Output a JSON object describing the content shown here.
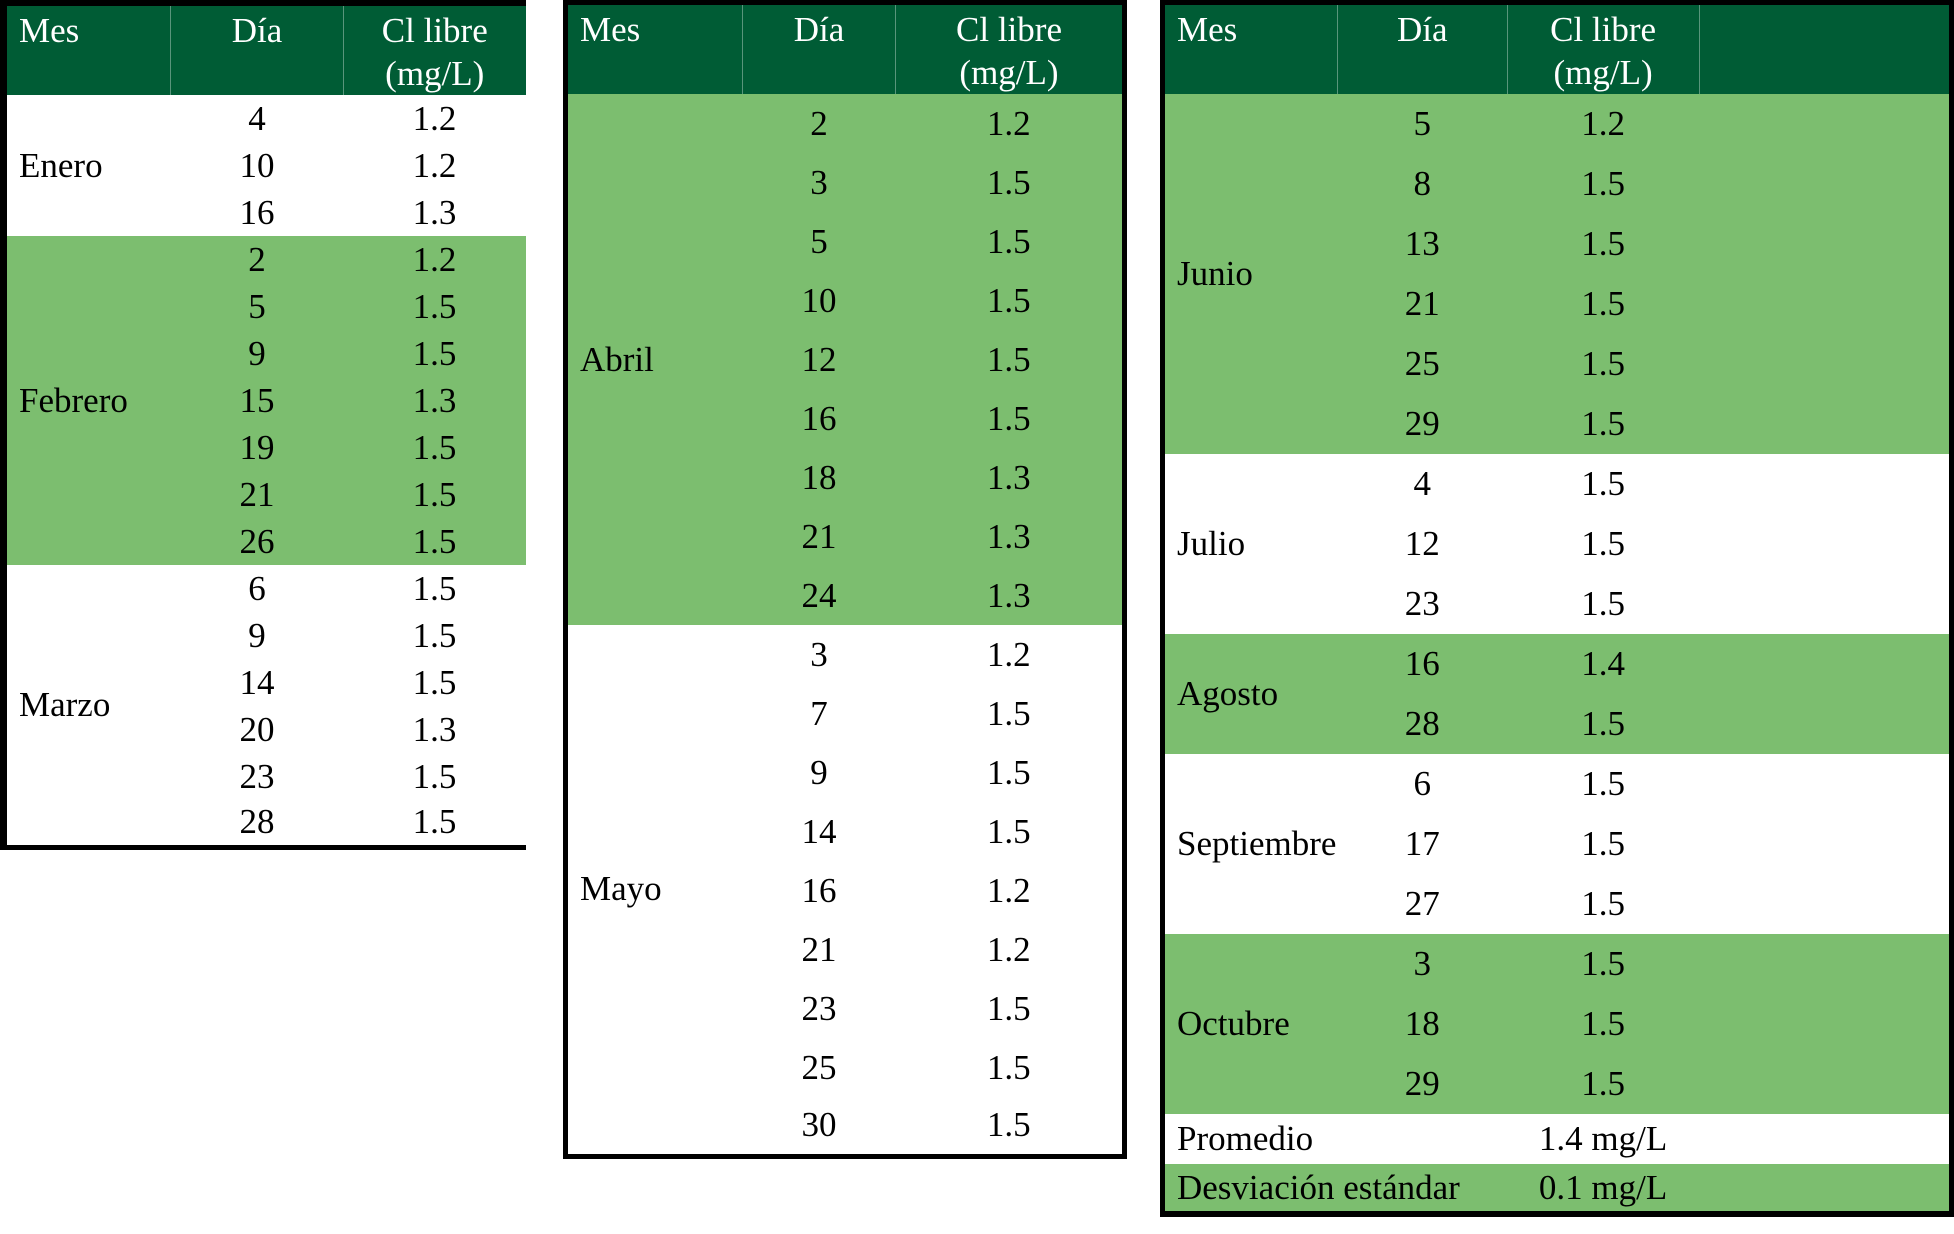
{
  "colors": {
    "header_bg": "#005C35",
    "header_text": "#FFFFFF",
    "band_green": "#7CBE6F",
    "body_text": "#000000",
    "border_black": "#000000"
  },
  "header_labels": {
    "mes": "Mes",
    "dia": "Día",
    "cl_line1": "Cl libre",
    "cl_line2": "(mg/L)"
  },
  "tables": [
    {
      "name": "enero-marzo",
      "groups": [
        {
          "month": "Enero",
          "shaded": false,
          "rows": [
            {
              "day": "4",
              "value": "1.2"
            },
            {
              "day": "10",
              "value": "1.2"
            },
            {
              "day": "16",
              "value": "1.3"
            }
          ]
        },
        {
          "month": "Febrero",
          "shaded": true,
          "rows": [
            {
              "day": "2",
              "value": "1.2"
            },
            {
              "day": "5",
              "value": "1.5"
            },
            {
              "day": "9",
              "value": "1.5"
            },
            {
              "day": "15",
              "value": "1.3"
            },
            {
              "day": "19",
              "value": "1.5"
            },
            {
              "day": "21",
              "value": "1.5"
            },
            {
              "day": "26",
              "value": "1.5"
            }
          ]
        },
        {
          "month": "Marzo",
          "shaded": false,
          "rows": [
            {
              "day": "6",
              "value": "1.5"
            },
            {
              "day": "9",
              "value": "1.5"
            },
            {
              "day": "14",
              "value": "1.5"
            },
            {
              "day": "20",
              "value": "1.3"
            },
            {
              "day": "23",
              "value": "1.5"
            },
            {
              "day": "28",
              "value": "1.5"
            }
          ]
        }
      ]
    },
    {
      "name": "abril-mayo",
      "groups": [
        {
          "month": "Abril",
          "shaded": true,
          "rows": [
            {
              "day": "2",
              "value": "1.2"
            },
            {
              "day": "3",
              "value": "1.5"
            },
            {
              "day": "5",
              "value": "1.5"
            },
            {
              "day": "10",
              "value": "1.5"
            },
            {
              "day": "12",
              "value": "1.5"
            },
            {
              "day": "16",
              "value": "1.5"
            },
            {
              "day": "18",
              "value": "1.3"
            },
            {
              "day": "21",
              "value": "1.3"
            },
            {
              "day": "24",
              "value": "1.3"
            }
          ]
        },
        {
          "month": "Mayo",
          "shaded": false,
          "rows": [
            {
              "day": "3",
              "value": "1.2"
            },
            {
              "day": "7",
              "value": "1.5"
            },
            {
              "day": "9",
              "value": "1.5"
            },
            {
              "day": "14",
              "value": "1.5"
            },
            {
              "day": "16",
              "value": "1.2"
            },
            {
              "day": "21",
              "value": "1.2"
            },
            {
              "day": "23",
              "value": "1.5"
            },
            {
              "day": "25",
              "value": "1.5"
            },
            {
              "day": "30",
              "value": "1.5"
            }
          ]
        }
      ]
    },
    {
      "name": "junio-octubre",
      "groups": [
        {
          "month": "Junio",
          "shaded": true,
          "rows": [
            {
              "day": "5",
              "value": "1.2"
            },
            {
              "day": "8",
              "value": "1.5"
            },
            {
              "day": "13",
              "value": "1.5"
            },
            {
              "day": "21",
              "value": "1.5"
            },
            {
              "day": "25",
              "value": "1.5"
            },
            {
              "day": "29",
              "value": "1.5"
            }
          ]
        },
        {
          "month": "Julio",
          "shaded": false,
          "rows": [
            {
              "day": "4",
              "value": "1.5"
            },
            {
              "day": "12",
              "value": "1.5"
            },
            {
              "day": "23",
              "value": "1.5"
            }
          ]
        },
        {
          "month": "Agosto",
          "shaded": true,
          "rows": [
            {
              "day": "16",
              "value": "1.4"
            },
            {
              "day": "28",
              "value": "1.5"
            }
          ]
        },
        {
          "month": "Septiembre",
          "shaded": false,
          "rows": [
            {
              "day": "6",
              "value": "1.5"
            },
            {
              "day": "17",
              "value": "1.5"
            },
            {
              "day": "27",
              "value": "1.5"
            }
          ]
        },
        {
          "month": "Octubre",
          "shaded": true,
          "rows": [
            {
              "day": "3",
              "value": "1.5"
            },
            {
              "day": "18",
              "value": "1.5"
            },
            {
              "day": "29",
              "value": "1.5"
            }
          ]
        }
      ],
      "summary_rows": [
        {
          "label": "Promedio",
          "value": "1.4 mg/L",
          "shaded": false
        },
        {
          "label": "Desviación estándar",
          "value": "0.1 mg/L",
          "shaded": true
        }
      ]
    }
  ],
  "chart_data": {
    "type": "table",
    "title": "Cl libre (mg/L) por mes y día",
    "columns": [
      "Mes",
      "Día",
      "Cl libre (mg/L)"
    ],
    "rows": [
      [
        "Enero",
        4,
        1.2
      ],
      [
        "Enero",
        10,
        1.2
      ],
      [
        "Enero",
        16,
        1.3
      ],
      [
        "Febrero",
        2,
        1.2
      ],
      [
        "Febrero",
        5,
        1.5
      ],
      [
        "Febrero",
        9,
        1.5
      ],
      [
        "Febrero",
        15,
        1.3
      ],
      [
        "Febrero",
        19,
        1.5
      ],
      [
        "Febrero",
        21,
        1.5
      ],
      [
        "Febrero",
        26,
        1.5
      ],
      [
        "Marzo",
        6,
        1.5
      ],
      [
        "Marzo",
        9,
        1.5
      ],
      [
        "Marzo",
        14,
        1.5
      ],
      [
        "Marzo",
        20,
        1.3
      ],
      [
        "Marzo",
        23,
        1.5
      ],
      [
        "Marzo",
        28,
        1.5
      ],
      [
        "Abril",
        2,
        1.2
      ],
      [
        "Abril",
        3,
        1.5
      ],
      [
        "Abril",
        5,
        1.5
      ],
      [
        "Abril",
        10,
        1.5
      ],
      [
        "Abril",
        12,
        1.5
      ],
      [
        "Abril",
        16,
        1.5
      ],
      [
        "Abril",
        18,
        1.3
      ],
      [
        "Abril",
        21,
        1.3
      ],
      [
        "Abril",
        24,
        1.3
      ],
      [
        "Mayo",
        3,
        1.2
      ],
      [
        "Mayo",
        7,
        1.5
      ],
      [
        "Mayo",
        9,
        1.5
      ],
      [
        "Mayo",
        14,
        1.5
      ],
      [
        "Mayo",
        16,
        1.2
      ],
      [
        "Mayo",
        21,
        1.2
      ],
      [
        "Mayo",
        23,
        1.5
      ],
      [
        "Mayo",
        25,
        1.5
      ],
      [
        "Mayo",
        30,
        1.5
      ],
      [
        "Junio",
        5,
        1.2
      ],
      [
        "Junio",
        8,
        1.5
      ],
      [
        "Junio",
        13,
        1.5
      ],
      [
        "Junio",
        21,
        1.5
      ],
      [
        "Junio",
        25,
        1.5
      ],
      [
        "Junio",
        29,
        1.5
      ],
      [
        "Julio",
        4,
        1.5
      ],
      [
        "Julio",
        12,
        1.5
      ],
      [
        "Julio",
        23,
        1.5
      ],
      [
        "Agosto",
        16,
        1.4
      ],
      [
        "Agosto",
        28,
        1.5
      ],
      [
        "Septiembre",
        6,
        1.5
      ],
      [
        "Septiembre",
        17,
        1.5
      ],
      [
        "Septiembre",
        27,
        1.5
      ],
      [
        "Octubre",
        3,
        1.5
      ],
      [
        "Octubre",
        18,
        1.5
      ],
      [
        "Octubre",
        29,
        1.5
      ]
    ],
    "summary": {
      "Promedio": "1.4 mg/L",
      "Desviación estándar": "0.1 mg/L"
    }
  }
}
